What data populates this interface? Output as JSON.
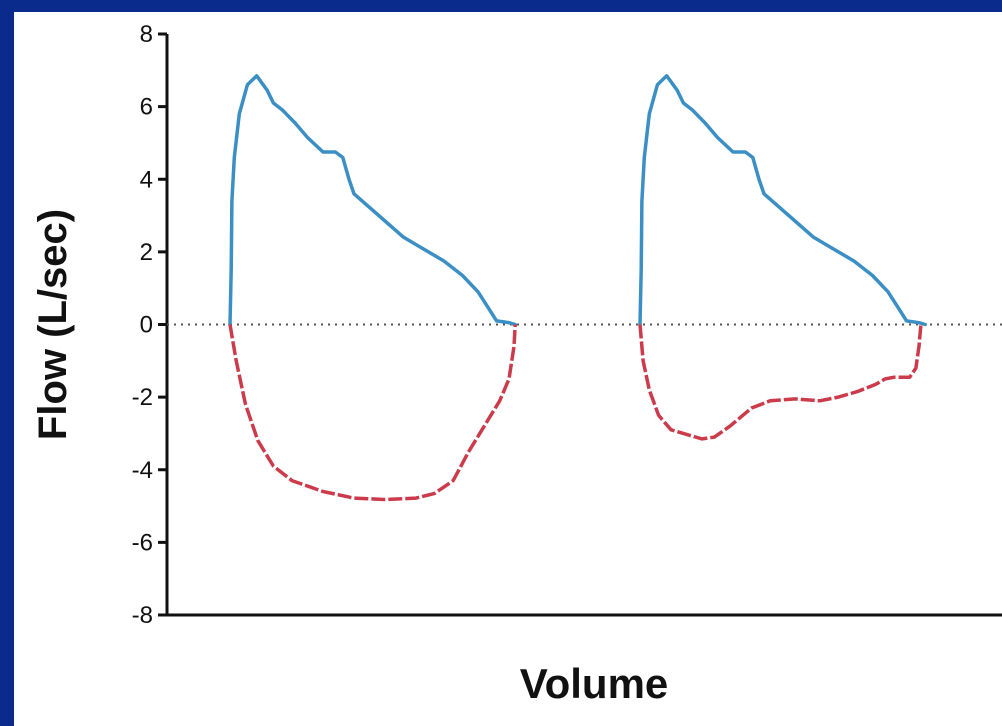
{
  "chart_data": {
    "type": "line",
    "xlabel": "Volume",
    "ylabel": "Flow (L/sec)",
    "ylim": [
      -8,
      8
    ],
    "yticks": [
      "8",
      "6",
      "4",
      "2",
      "0",
      "-2",
      "-4",
      "-6",
      "-8"
    ],
    "ytick_values": [
      8,
      6,
      4,
      2,
      0,
      -2,
      -4,
      -6,
      -8
    ],
    "x_tick_labels": false,
    "xlim": [
      0,
      10
    ],
    "grid": false,
    "reference_line": {
      "y": 0,
      "style": "dotted"
    },
    "series_colors": {
      "expiratory": "#3b8fc4",
      "inspiratory": "#cc3b4b"
    },
    "loops": [
      {
        "expiratory": [
          [
            0,
            0
          ],
          [
            0.02,
            1.5
          ],
          [
            0.03,
            3.4
          ],
          [
            0.07,
            4.6
          ],
          [
            0.15,
            5.8
          ],
          [
            0.28,
            6.6
          ],
          [
            0.43,
            6.85
          ],
          [
            0.6,
            6.45
          ],
          [
            0.7,
            6.1
          ],
          [
            0.85,
            5.9
          ],
          [
            1.05,
            5.55
          ],
          [
            1.25,
            5.15
          ],
          [
            1.5,
            4.75
          ],
          [
            1.7,
            4.75
          ],
          [
            1.82,
            4.6
          ],
          [
            1.92,
            4.0
          ],
          [
            2.0,
            3.6
          ],
          [
            2.2,
            3.3
          ],
          [
            2.5,
            2.85
          ],
          [
            2.8,
            2.4
          ],
          [
            3.1,
            2.1
          ],
          [
            3.45,
            1.75
          ],
          [
            3.75,
            1.35
          ],
          [
            4.0,
            0.9
          ],
          [
            4.15,
            0.5
          ],
          [
            4.3,
            0.1
          ],
          [
            4.5,
            0.05
          ],
          [
            4.6,
            0
          ]
        ],
        "inspiratory": [
          [
            0,
            0
          ],
          [
            0.1,
            -1.0
          ],
          [
            0.25,
            -2.2
          ],
          [
            0.45,
            -3.2
          ],
          [
            0.7,
            -3.9
          ],
          [
            1.0,
            -4.3
          ],
          [
            1.5,
            -4.6
          ],
          [
            2.0,
            -4.78
          ],
          [
            2.5,
            -4.82
          ],
          [
            3.0,
            -4.78
          ],
          [
            3.3,
            -4.65
          ],
          [
            3.6,
            -4.3
          ],
          [
            3.85,
            -3.5
          ],
          [
            4.1,
            -2.8
          ],
          [
            4.35,
            -2.1
          ],
          [
            4.5,
            -1.5
          ],
          [
            4.58,
            -0.6
          ],
          [
            4.6,
            0
          ]
        ]
      },
      {
        "expiratory": [
          [
            0,
            0
          ],
          [
            0.02,
            1.5
          ],
          [
            0.03,
            3.4
          ],
          [
            0.07,
            4.6
          ],
          [
            0.15,
            5.8
          ],
          [
            0.28,
            6.6
          ],
          [
            0.43,
            6.85
          ],
          [
            0.6,
            6.45
          ],
          [
            0.7,
            6.1
          ],
          [
            0.85,
            5.9
          ],
          [
            1.05,
            5.55
          ],
          [
            1.25,
            5.15
          ],
          [
            1.5,
            4.75
          ],
          [
            1.7,
            4.75
          ],
          [
            1.82,
            4.6
          ],
          [
            1.92,
            4.0
          ],
          [
            2.0,
            3.6
          ],
          [
            2.2,
            3.3
          ],
          [
            2.5,
            2.85
          ],
          [
            2.8,
            2.4
          ],
          [
            3.1,
            2.1
          ],
          [
            3.45,
            1.75
          ],
          [
            3.75,
            1.35
          ],
          [
            4.0,
            0.9
          ],
          [
            4.15,
            0.5
          ],
          [
            4.3,
            0.1
          ],
          [
            4.5,
            0.05
          ],
          [
            4.6,
            0
          ]
        ],
        "inspiratory": [
          [
            0,
            0
          ],
          [
            0.05,
            -1.0
          ],
          [
            0.15,
            -1.8
          ],
          [
            0.3,
            -2.5
          ],
          [
            0.5,
            -2.9
          ],
          [
            0.8,
            -3.05
          ],
          [
            1.0,
            -3.15
          ],
          [
            1.2,
            -3.1
          ],
          [
            1.45,
            -2.8
          ],
          [
            1.8,
            -2.3
          ],
          [
            2.1,
            -2.1
          ],
          [
            2.5,
            -2.05
          ],
          [
            2.9,
            -2.1
          ],
          [
            3.2,
            -2.0
          ],
          [
            3.5,
            -1.85
          ],
          [
            3.8,
            -1.65
          ],
          [
            3.95,
            -1.5
          ],
          [
            4.1,
            -1.45
          ],
          [
            4.35,
            -1.45
          ],
          [
            4.45,
            -1.2
          ],
          [
            4.5,
            -0.6
          ],
          [
            4.53,
            0
          ]
        ]
      }
    ]
  }
}
